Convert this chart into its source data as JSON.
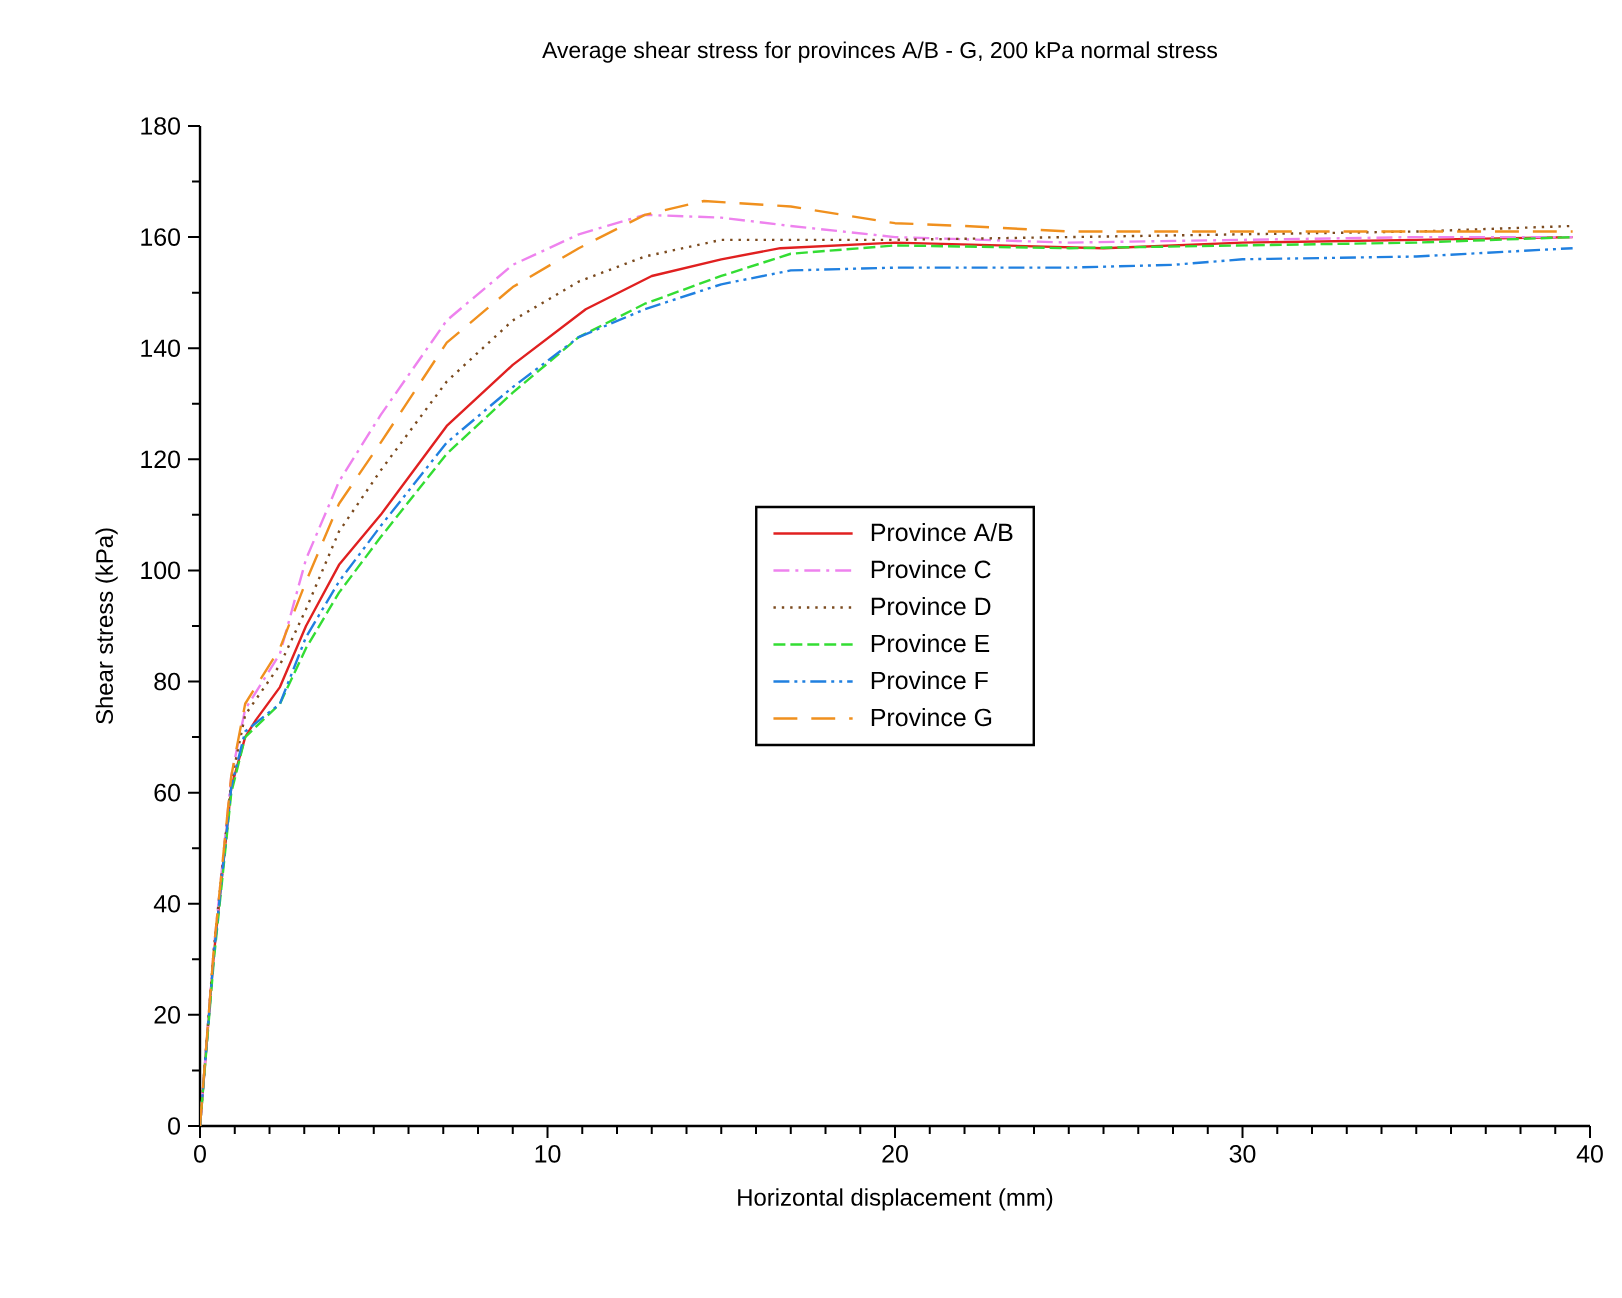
{
  "chart_data": {
    "type": "line",
    "title": "Average shear stress for provinces A/B - G, 200 kPa normal stress",
    "xlabel": "Horizontal displacement (mm)",
    "ylabel": "Shear stress (kPa)",
    "xlim": [
      0,
      40
    ],
    "ylim": [
      0,
      180
    ],
    "xticks": [
      0,
      10,
      20,
      30,
      40
    ],
    "yticks": [
      0,
      20,
      40,
      60,
      80,
      100,
      120,
      140,
      160,
      180
    ],
    "grid": false,
    "legend": "center",
    "series": [
      {
        "name": "Province A/B",
        "color": "#e02020",
        "line_style": "solid",
        "x": [
          0,
          0.4,
          0.9,
          1.3,
          1.6,
          2.3,
          3.05,
          4,
          5.2,
          7.1,
          9,
          11.1,
          13,
          15,
          16.7,
          20,
          26,
          30,
          35,
          39.5
        ],
        "values": [
          0,
          31,
          61,
          70,
          73,
          79,
          90,
          101,
          110,
          126,
          137,
          147,
          153,
          156,
          158,
          159,
          158,
          159,
          159.5,
          160
        ]
      },
      {
        "name": "Province C",
        "color": "#ee82ee",
        "line_style": "dashdot",
        "x": [
          0,
          0.4,
          0.9,
          1.3,
          2.3,
          3.05,
          4,
          5.2,
          7.1,
          9,
          10.9,
          12.8,
          15,
          17,
          20,
          25,
          30,
          35,
          39.5
        ],
        "values": [
          0,
          32,
          63,
          75,
          85,
          102,
          116,
          128,
          145,
          155,
          160.5,
          164,
          163.5,
          162,
          160,
          159,
          159.5,
          160,
          160
        ]
      },
      {
        "name": "Province D",
        "color": "#7b4a1e",
        "line_style": "dotted",
        "x": [
          0,
          0.4,
          0.9,
          1.3,
          2.3,
          3.05,
          4,
          5.2,
          7.1,
          9,
          10.9,
          12.8,
          15,
          20,
          25,
          30,
          35,
          39.5
        ],
        "values": [
          0,
          32,
          62,
          74,
          83,
          93,
          107,
          118,
          134,
          145,
          152,
          156.5,
          159.5,
          159.5,
          160,
          160.5,
          161,
          162
        ]
      },
      {
        "name": "Province E",
        "color": "#33dd33",
        "line_style": "dashed",
        "x": [
          0,
          0.4,
          0.9,
          1.3,
          2.3,
          3.05,
          4,
          5.2,
          7.1,
          9,
          10.9,
          12.8,
          15,
          17,
          20,
          25,
          30,
          35,
          39.5
        ],
        "values": [
          0,
          30,
          60,
          70,
          76,
          86,
          96,
          106,
          121,
          132,
          142,
          148,
          153,
          157,
          158.5,
          158,
          158.5,
          159,
          160
        ]
      },
      {
        "name": "Province F",
        "color": "#2080e0",
        "line_style": "dashdotdot",
        "x": [
          0,
          0.4,
          0.9,
          1.3,
          2.3,
          3.05,
          4,
          5.2,
          7.1,
          9,
          10.9,
          12.8,
          15,
          17,
          20,
          25,
          28,
          30,
          35,
          39.5
        ],
        "values": [
          0,
          31,
          61,
          71,
          76,
          88,
          98,
          108,
          123,
          133,
          142,
          147,
          151.5,
          154,
          154.5,
          154.5,
          155,
          156,
          156.5,
          158
        ]
      },
      {
        "name": "Province G",
        "color": "#f0901e",
        "line_style": "longdash",
        "x": [
          0,
          0.4,
          0.9,
          1.3,
          2.3,
          3.05,
          4,
          5.2,
          7.1,
          9,
          10.9,
          12.8,
          14.5,
          17,
          20,
          22,
          25,
          30,
          35,
          39.5
        ],
        "values": [
          0,
          32,
          63,
          76,
          86,
          98,
          112,
          123,
          141,
          151,
          158,
          164,
          166.5,
          165.5,
          162.5,
          162,
          161,
          161,
          161,
          161
        ]
      }
    ]
  }
}
